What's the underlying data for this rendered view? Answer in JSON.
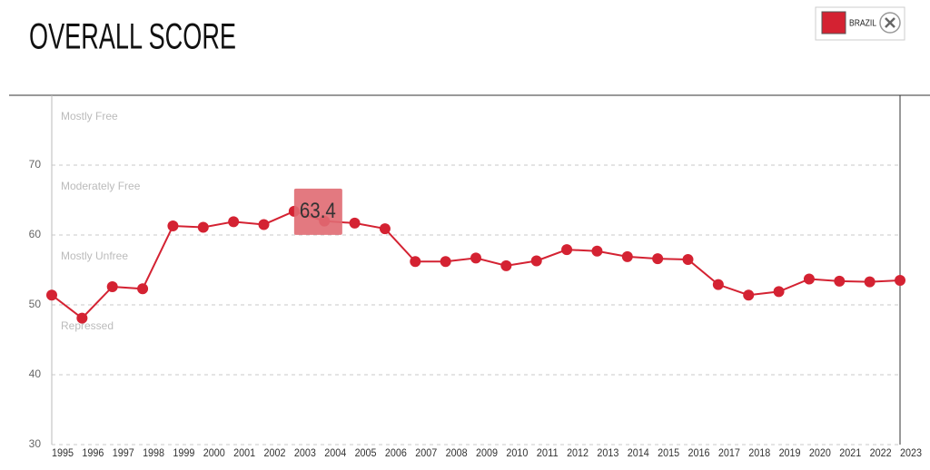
{
  "chart_data": {
    "type": "line",
    "title": "OVERALL SCORE",
    "categories": [
      "1995",
      "1996",
      "1997",
      "1998",
      "1999",
      "2000",
      "2001",
      "2002",
      "2003",
      "2004",
      "2005",
      "2006",
      "2007",
      "2008",
      "2009",
      "2010",
      "2011",
      "2012",
      "2013",
      "2014",
      "2015",
      "2016",
      "2017",
      "2018",
      "2019",
      "2020",
      "2021",
      "2022",
      "2023"
    ],
    "series": [
      {
        "name": "BRAZIL",
        "color": "#d42232",
        "values": [
          51.4,
          48.1,
          52.6,
          52.3,
          61.3,
          61.1,
          61.9,
          61.5,
          63.4,
          62.0,
          61.7,
          60.9,
          56.2,
          56.2,
          56.7,
          55.6,
          56.3,
          57.9,
          57.7,
          56.9,
          56.6,
          56.5,
          52.9,
          51.4,
          51.9,
          53.7,
          53.4,
          53.3,
          53.5
        ]
      }
    ],
    "ylim": [
      30,
      80
    ],
    "yticks": [
      30,
      40,
      50,
      60,
      70
    ],
    "grid": true,
    "annotations": [
      "Mostly Free",
      "Moderately Free",
      "Mostly Unfree",
      "Repressed"
    ]
  }
}
